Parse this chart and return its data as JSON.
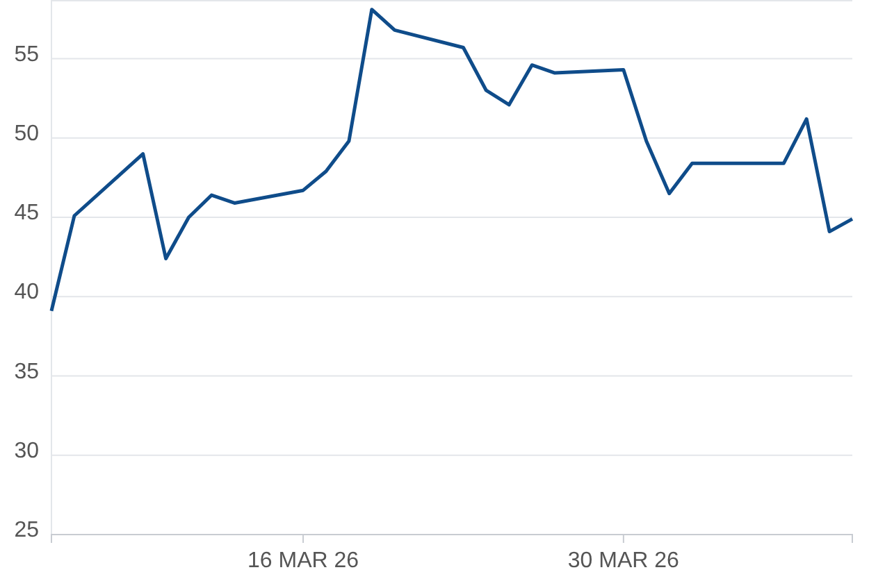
{
  "chart_data": {
    "type": "line",
    "x": [
      "--03-05",
      "--03-06",
      "--03-09",
      "--03-10",
      "--03-11",
      "--03-12",
      "--03-13",
      "--03-16",
      "--03-17",
      "--03-18",
      "--03-19",
      "--03-20",
      "--03-23",
      "--03-24",
      "--03-25",
      "--03-26",
      "--03-27",
      "--03-30",
      "--03-31",
      "--04-01",
      "--04-02",
      "--04-06",
      "--04-07",
      "--04-08",
      "--04-09"
    ],
    "series": [
      {
        "color": "#0f4c8a",
        "values": [
          39.1,
          45.1,
          49.0,
          42.4,
          45.0,
          46.4,
          45.9,
          46.7,
          47.9,
          49.8,
          58.1,
          56.8,
          55.7,
          53.0,
          52.1,
          54.6,
          54.1,
          54.3,
          49.8,
          46.5,
          48.4,
          48.4,
          51.2,
          44.1,
          44.9
        ]
      }
    ],
    "xlim": [
      "--03-05",
      "--04-09"
    ],
    "xticks": [
      {
        "value": "--03-16",
        "label": "16 MAR 26"
      },
      {
        "value": "--03-30",
        "label": "30 MAR 26"
      }
    ],
    "ylim": [
      25,
      58.7
    ],
    "yticks": [
      25,
      30,
      35,
      40,
      45,
      50,
      55
    ],
    "grid": "y",
    "marker": "none",
    "line_style": "solid"
  }
}
